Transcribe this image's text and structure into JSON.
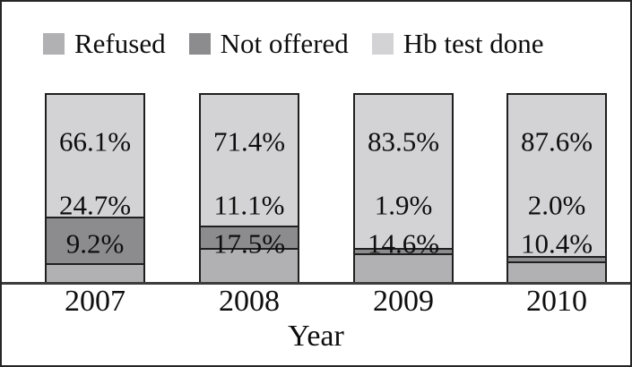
{
  "chart_data": {
    "type": "bar",
    "stacked": true,
    "orientation": "vertical",
    "title": "",
    "xlabel": "Year",
    "ylabel": "",
    "ylim": [
      0,
      100
    ],
    "grid": false,
    "legend_position": "top",
    "value_suffix": "%",
    "categories": [
      "2007",
      "2008",
      "2009",
      "2010"
    ],
    "series": [
      {
        "name": "Refused",
        "color": "#b1b1b3",
        "values": [
          9.2,
          17.5,
          14.6,
          10.4
        ]
      },
      {
        "name": "Not offered",
        "color": "#8c8c8e",
        "values": [
          24.7,
          11.1,
          1.9,
          2.0
        ]
      },
      {
        "name": "Hb test done",
        "color": "#d3d3d5",
        "values": [
          66.1,
          71.4,
          83.5,
          87.6
        ]
      }
    ],
    "stack_order_top_to_bottom": [
      "Hb test done",
      "Not offered",
      "Refused"
    ],
    "data_labels_shown": true,
    "colors": {
      "bar_border": "#1f1f1f",
      "axis_line": "#3c3c3c",
      "frame_border": "#262626",
      "text": "#0e0e0e",
      "background": "#ffffff"
    }
  }
}
